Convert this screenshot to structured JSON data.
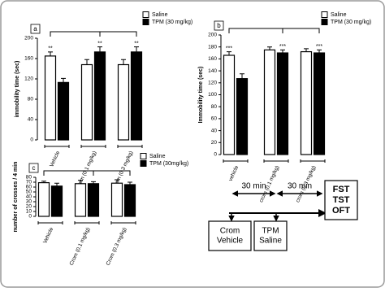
{
  "chart_data": [
    {
      "type": "bar",
      "panel": "a",
      "y_label": "immobility time (sec)",
      "categories": [
        "Vehicle",
        "Crom (0.1 mg/kg)",
        "Crom (0.3 mg/kg)"
      ],
      "series": [
        {
          "name": "Saline",
          "color": "#ffffff",
          "values": [
            165,
            148,
            148
          ],
          "errors": [
            8,
            10,
            10
          ],
          "significance": [
            "**",
            null,
            null
          ]
        },
        {
          "name": "TPM (30 mg/kg)",
          "color": "#000000",
          "values": [
            113,
            173,
            173
          ],
          "errors": [
            8,
            10,
            10
          ],
          "significance": [
            null,
            "**",
            "**"
          ]
        }
      ],
      "ylim": [
        0,
        200
      ],
      "yticks": [
        0,
        40,
        80,
        120,
        160,
        200
      ]
    },
    {
      "type": "bar",
      "panel": "b",
      "y_label": "Immobility time (sec)",
      "categories": [
        "vehicle",
        "crom (0.1 mg/kg)",
        "crom (0.3 mg/kg)"
      ],
      "series": [
        {
          "name": "Saline",
          "color": "#ffffff",
          "values": [
            166,
            175,
            172
          ],
          "errors": [
            6,
            5,
            5
          ],
          "significance": [
            "***",
            null,
            null
          ]
        },
        {
          "name": "TPM (30 mg/kg)",
          "color": "#000000",
          "values": [
            127,
            170,
            170
          ],
          "errors": [
            8,
            5,
            5
          ],
          "significance": [
            null,
            "***",
            "***"
          ]
        }
      ],
      "ylim": [
        0,
        200
      ],
      "yticks": [
        0,
        20,
        40,
        60,
        80,
        100,
        120,
        140,
        160,
        180,
        200
      ]
    },
    {
      "type": "bar",
      "panel": "c",
      "y_label": "number of crosses / 4 min",
      "categories": [
        "Vehicle",
        "Crom (0.1 mg/kg)",
        "Crom (0.3 mg/kg)"
      ],
      "series": [
        {
          "name": "Saline",
          "color": "#ffffff",
          "values": [
            69,
            67,
            68
          ],
          "errors": [
            3,
            7,
            7
          ],
          "significance": [
            null,
            null,
            null
          ]
        },
        {
          "name": "TPM (30mg/kg)",
          "color": "#000000",
          "values": [
            62,
            67,
            65
          ],
          "errors": [
            6,
            4,
            5
          ],
          "significance": [
            null,
            null,
            null
          ]
        }
      ],
      "ylim": [
        0,
        80
      ],
      "yticks": [
        0,
        10,
        20,
        30,
        40,
        50,
        60,
        70,
        80
      ]
    }
  ],
  "diagram": {
    "intervals": [
      "30 min",
      "30 min"
    ],
    "boxes": [
      [
        "Crom",
        "Vehicle"
      ],
      [
        "TPM",
        "Saline"
      ],
      [
        "FST",
        "TST",
        "OFT"
      ]
    ]
  }
}
